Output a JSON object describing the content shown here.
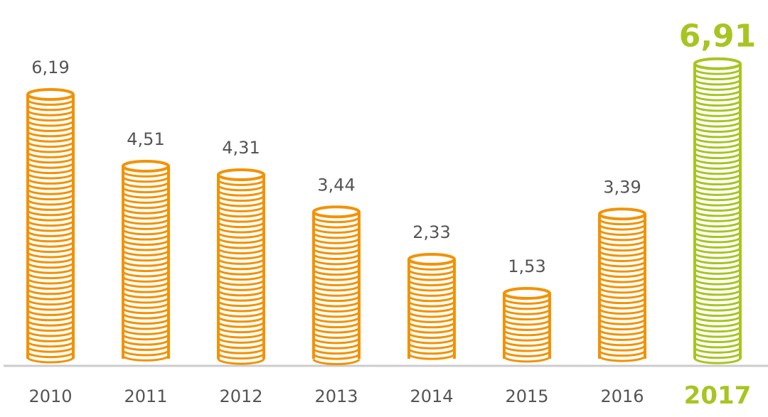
{
  "chart_data": {
    "type": "bar",
    "title": "",
    "xlabel": "",
    "ylabel": "",
    "categories": [
      "2010",
      "2011",
      "2012",
      "2013",
      "2014",
      "2015",
      "2016",
      "2017"
    ],
    "values": [
      6.19,
      4.51,
      4.31,
      3.44,
      2.33,
      1.53,
      3.39,
      6.91
    ],
    "value_labels": [
      "6,19",
      "4,51",
      "4,31",
      "3,44",
      "2,33",
      "1,53",
      "3,39",
      "6,91"
    ],
    "highlight_index": 7,
    "ylim": [
      0,
      7
    ],
    "grid": false,
    "bar_style": "stacked-coins",
    "colors": {
      "bar": "#f39200",
      "highlight": "#a7c520",
      "text": "#555555",
      "baseline": "#cccccc"
    }
  }
}
